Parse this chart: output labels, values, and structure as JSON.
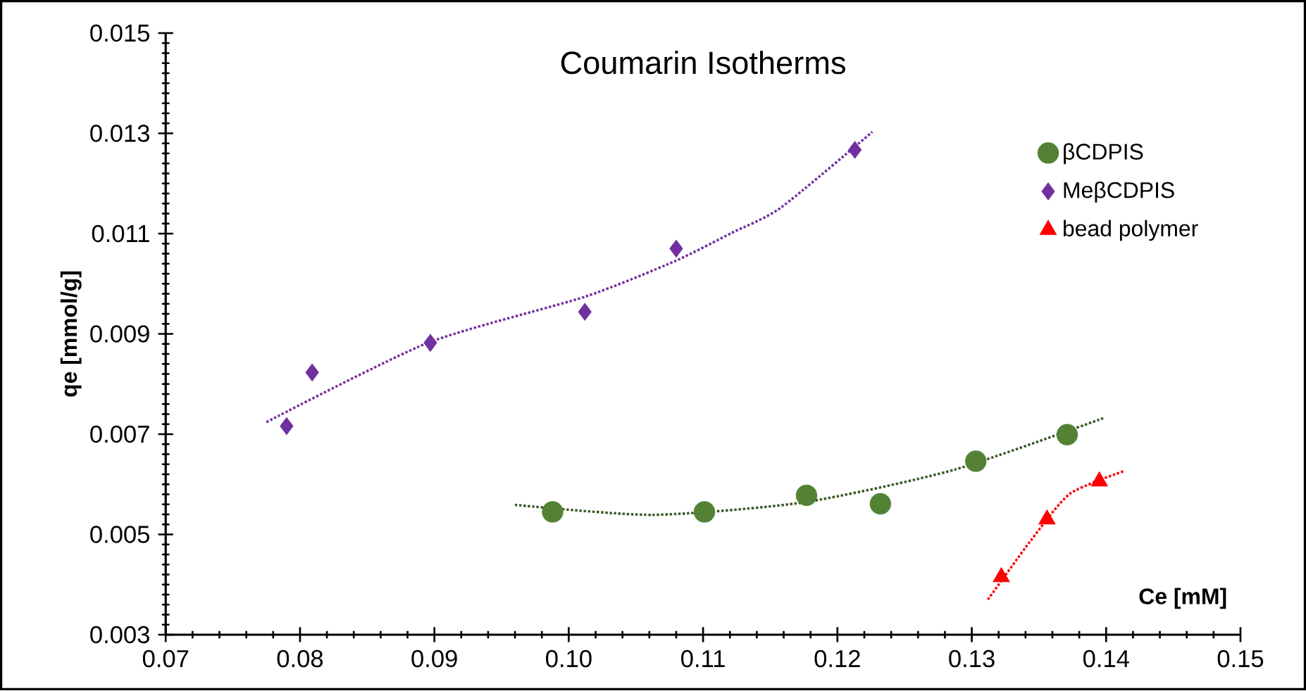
{
  "chart_data": {
    "type": "scatter",
    "title": "Coumarin Isotherms",
    "xlabel": "Ce [mM]",
    "ylabel": "qe [mmol/g]",
    "xlim": [
      0.07,
      0.15
    ],
    "xticks": [
      0.07,
      0.08,
      0.09,
      {
        "value": 0.1,
        "label": "0.10"
      },
      0.11,
      0.12,
      0.13,
      0.14,
      0.15
    ],
    "ylim": [
      0.003,
      0.015
    ],
    "yticks": [
      0.003,
      0.005,
      0.007,
      0.009,
      0.011,
      0.013,
      0.015
    ],
    "legend": "top right",
    "grid": false,
    "series": [
      {
        "name": "βCDPIS",
        "marker": "circle",
        "color": "#548235",
        "x": [
          0.0988,
          0.1101,
          0.1177,
          0.1232,
          0.1303,
          0.1371
        ],
        "values": [
          0.00545,
          0.00545,
          0.00578,
          0.00561,
          0.00646,
          0.00699
        ]
      },
      {
        "name": "MeβCDPIS",
        "marker": "diamond",
        "color": "#7030a0",
        "x": [
          0.079,
          0.0809,
          0.0897,
          0.1012,
          0.108,
          0.1213
        ],
        "values": [
          0.00716,
          0.00823,
          0.00882,
          0.00944,
          0.0107,
          0.01267
        ]
      },
      {
        "name": "bead polymer",
        "marker": "triangle",
        "color": "#ff0000",
        "x": [
          0.1322,
          0.1356,
          0.1395
        ],
        "values": [
          0.00415,
          0.0053,
          0.00606
        ]
      },
      {
        "type": "line",
        "line_style": "dotted",
        "color": "#385723",
        "x": [
          0.096,
          0.1062,
          0.1175,
          0.1287,
          0.1399
        ],
        "values": [
          0.00559,
          0.00539,
          0.00564,
          0.00629,
          0.00733
        ]
      },
      {
        "type": "line",
        "line_style": "dotted",
        "color": "#7030a0",
        "x": [
          0.0775,
          0.0895,
          0.1012,
          0.1079,
          0.1121,
          0.1158,
          0.1226
        ],
        "values": [
          0.00724,
          0.00882,
          0.00974,
          0.01045,
          0.01101,
          0.01152,
          0.01303
        ]
      },
      {
        "type": "line",
        "line_style": "dotted",
        "color": "#ff0000",
        "x": [
          0.1312,
          0.1344,
          0.1373,
          0.1413
        ],
        "values": [
          0.0037,
          0.00488,
          0.00581,
          0.00626
        ]
      }
    ]
  }
}
